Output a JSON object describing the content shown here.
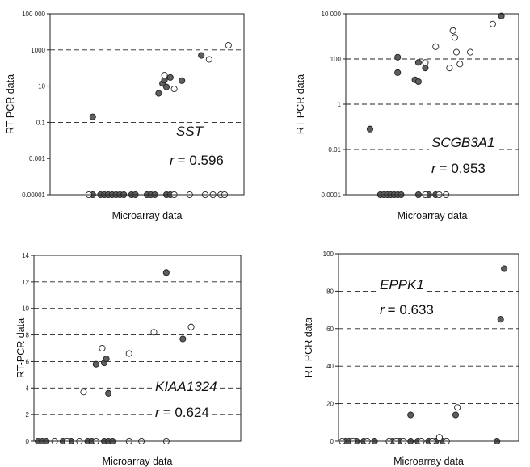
{
  "figure": {
    "y_axis_label": "RT-PCR data",
    "x_axis_label": "Microarray data"
  },
  "chart_data": [
    {
      "type": "scatter",
      "gene": "SST",
      "r_label": "r",
      "r_value": "= 0.596",
      "xlabel": "Microarray data",
      "ylabel": "RT-PCR data",
      "yscale": "log",
      "ylim": [
        1e-05,
        100000
      ],
      "yticks": [
        1e-05,
        0.001,
        0.1,
        10,
        1000,
        100000
      ],
      "ytick_labels": [
        "0.00001",
        "0.001",
        "0.1",
        "10",
        "1000",
        "100 000"
      ],
      "grid_lines": [
        0.1,
        10,
        1000
      ],
      "series": [
        {
          "group": "filled",
          "points": [
            [
              0.22,
              0.2
            ],
            [
              0.56,
              4
            ],
            [
              0.58,
              14
            ],
            [
              0.59,
              22
            ],
            [
              0.6,
              9
            ],
            [
              0.62,
              30
            ],
            [
              0.68,
              20
            ],
            [
              0.78,
              500
            ],
            [
              0.22,
              1e-05
            ],
            [
              0.26,
              1e-05
            ],
            [
              0.28,
              1e-05
            ],
            [
              0.3,
              1e-05
            ],
            [
              0.32,
              1e-05
            ],
            [
              0.34,
              1e-05
            ],
            [
              0.36,
              1e-05
            ],
            [
              0.38,
              1e-05
            ],
            [
              0.42,
              1e-05
            ],
            [
              0.44,
              1e-05
            ],
            [
              0.5,
              1e-05
            ],
            [
              0.52,
              1e-05
            ],
            [
              0.54,
              1e-05
            ],
            [
              0.6,
              1e-05
            ],
            [
              0.62,
              1e-05
            ]
          ]
        },
        {
          "group": "open",
          "points": [
            [
              0.59,
              40
            ],
            [
              0.64,
              7
            ],
            [
              0.82,
              300
            ],
            [
              0.92,
              1800
            ],
            [
              0.2,
              1e-05
            ],
            [
              0.64,
              1e-05
            ],
            [
              0.72,
              1e-05
            ],
            [
              0.8,
              1e-05
            ],
            [
              0.84,
              1e-05
            ],
            [
              0.88,
              1e-05
            ],
            [
              0.9,
              1e-05
            ]
          ]
        }
      ]
    },
    {
      "type": "scatter",
      "gene": "SCGB3A1",
      "r_label": "r",
      "r_value": "= 0.953",
      "xlabel": "Microarray data",
      "ylabel": "RT-PCR data",
      "yscale": "log",
      "ylim": [
        0.0001,
        10000
      ],
      "yticks": [
        0.0001,
        0.01,
        1,
        100,
        10000
      ],
      "ytick_labels": [
        "0.0001",
        "0.01",
        "1",
        "100",
        "10 000"
      ],
      "grid_lines": [
        0.01,
        1,
        100
      ],
      "series": [
        {
          "group": "filled",
          "points": [
            [
              0.14,
              0.08
            ],
            [
              0.3,
              120
            ],
            [
              0.3,
              25
            ],
            [
              0.4,
              12
            ],
            [
              0.42,
              10
            ],
            [
              0.42,
              70
            ],
            [
              0.46,
              40
            ],
            [
              0.9,
              8000
            ],
            [
              0.2,
              0.0001
            ],
            [
              0.22,
              0.0001
            ],
            [
              0.24,
              0.0001
            ],
            [
              0.26,
              0.0001
            ],
            [
              0.28,
              0.0001
            ],
            [
              0.3,
              0.0001
            ],
            [
              0.32,
              0.0001
            ],
            [
              0.42,
              0.0001
            ],
            [
              0.48,
              0.0001
            ],
            [
              0.52,
              0.0001
            ]
          ]
        },
        {
          "group": "open",
          "points": [
            [
              0.46,
              70
            ],
            [
              0.52,
              350
            ],
            [
              0.6,
              40
            ],
            [
              0.62,
              1800
            ],
            [
              0.63,
              900
            ],
            [
              0.64,
              200
            ],
            [
              0.66,
              60
            ],
            [
              0.72,
              200
            ],
            [
              0.85,
              3500
            ],
            [
              0.46,
              0.0001
            ],
            [
              0.54,
              0.0001
            ],
            [
              0.58,
              0.0001
            ]
          ]
        }
      ]
    },
    {
      "type": "scatter",
      "gene": "KIAA1324",
      "r_label": "r",
      "r_value": "= 0.624",
      "xlabel": "Microarray data",
      "ylabel": "RT-PCR data",
      "yscale": "linear",
      "ylim": [
        0,
        14
      ],
      "yticks": [
        0,
        2,
        4,
        6,
        8,
        10,
        12,
        14
      ],
      "ytick_labels": [
        "0",
        "2",
        "4",
        "6",
        "8",
        "10",
        "12",
        "14"
      ],
      "grid_lines": [
        2,
        4,
        6,
        8,
        10,
        12
      ],
      "series": [
        {
          "group": "filled",
          "points": [
            [
              0.3,
              5.8
            ],
            [
              0.34,
              5.9
            ],
            [
              0.35,
              6.2
            ],
            [
              0.36,
              3.6
            ],
            [
              0.64,
              12.7
            ],
            [
              0.72,
              7.7
            ],
            [
              0.02,
              0
            ],
            [
              0.04,
              0
            ],
            [
              0.06,
              0
            ],
            [
              0.14,
              0
            ],
            [
              0.18,
              0
            ],
            [
              0.26,
              0
            ],
            [
              0.28,
              0
            ],
            [
              0.34,
              0
            ],
            [
              0.36,
              0
            ],
            [
              0.38,
              0
            ]
          ]
        },
        {
          "group": "open",
          "points": [
            [
              0.24,
              3.7
            ],
            [
              0.33,
              7
            ],
            [
              0.46,
              6.6
            ],
            [
              0.58,
              8.2
            ],
            [
              0.76,
              8.6
            ],
            [
              0.1,
              0
            ],
            [
              0.16,
              0
            ],
            [
              0.22,
              0
            ],
            [
              0.3,
              0
            ],
            [
              0.46,
              0
            ],
            [
              0.52,
              0
            ],
            [
              0.64,
              0
            ]
          ]
        }
      ]
    },
    {
      "type": "scatter",
      "gene": "EPPK1",
      "r_label": "r",
      "r_value": "= 0.633",
      "xlabel": "Microarray data",
      "ylabel": "RT-PCR data",
      "yscale": "linear",
      "ylim": [
        0,
        100
      ],
      "yticks": [
        0,
        20,
        40,
        60,
        80,
        100
      ],
      "ytick_labels": [
        "0",
        "20",
        "40",
        "60",
        "80",
        "100"
      ],
      "grid_lines": [
        20,
        40,
        60,
        80
      ],
      "series": [
        {
          "group": "filled",
          "points": [
            [
              0.4,
              14
            ],
            [
              0.65,
              14
            ],
            [
              0.9,
              65
            ],
            [
              0.92,
              92
            ],
            [
              0.04,
              0
            ],
            [
              0.06,
              0
            ],
            [
              0.1,
              0
            ],
            [
              0.14,
              0
            ],
            [
              0.2,
              0
            ],
            [
              0.3,
              0
            ],
            [
              0.34,
              0
            ],
            [
              0.4,
              0
            ],
            [
              0.44,
              0
            ],
            [
              0.5,
              0
            ],
            [
              0.54,
              0
            ],
            [
              0.58,
              0
            ],
            [
              0.88,
              0
            ]
          ]
        },
        {
          "group": "open",
          "points": [
            [
              0.56,
              2
            ],
            [
              0.66,
              18
            ],
            [
              0.02,
              0
            ],
            [
              0.08,
              0
            ],
            [
              0.16,
              0
            ],
            [
              0.28,
              0
            ],
            [
              0.32,
              0
            ],
            [
              0.36,
              0
            ],
            [
              0.46,
              0
            ],
            [
              0.52,
              0
            ],
            [
              0.6,
              0
            ]
          ]
        }
      ]
    }
  ],
  "colors": {
    "filled_marker": "#5e5e5e",
    "open_marker": "#ffffff",
    "marker_edge": "#222222"
  }
}
